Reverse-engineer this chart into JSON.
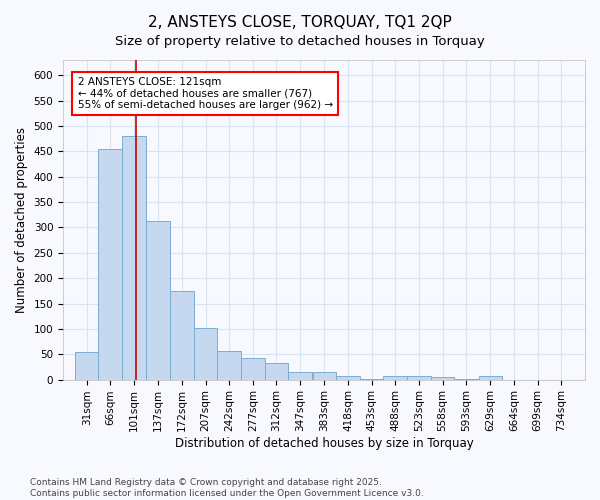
{
  "title": "2, ANSTEYS CLOSE, TORQUAY, TQ1 2QP",
  "subtitle": "Size of property relative to detached houses in Torquay",
  "xlabel": "Distribution of detached houses by size in Torquay",
  "ylabel": "Number of detached properties",
  "bar_color": "#c5d8f0",
  "bar_edge_color": "#7aadd4",
  "background_color": "#f7f9ff",
  "grid_color": "#d8e4f0",
  "vline_color": "#cc0000",
  "annotation_text": "2 ANSTEYS CLOSE: 121sqm\n← 44% of detached houses are smaller (767)\n55% of semi-detached houses are larger (962) →",
  "bins": [
    31,
    66,
    101,
    137,
    172,
    207,
    242,
    277,
    312,
    347,
    383,
    418,
    453,
    488,
    523,
    558,
    593,
    629,
    664,
    699,
    734
  ],
  "bar_heights": [
    55,
    455,
    480,
    312,
    174,
    101,
    57,
    43,
    33,
    15,
    15,
    8,
    2,
    7,
    7,
    5,
    1,
    7,
    0,
    0,
    0
  ],
  "bin_width": 35,
  "vline_x": 121,
  "ylim": [
    0,
    630
  ],
  "yticks": [
    0,
    50,
    100,
    150,
    200,
    250,
    300,
    350,
    400,
    450,
    500,
    550,
    600
  ],
  "footnote": "Contains HM Land Registry data © Crown copyright and database right 2025.\nContains public sector information licensed under the Open Government Licence v3.0.",
  "title_fontsize": 11,
  "subtitle_fontsize": 9.5,
  "label_fontsize": 8.5,
  "tick_fontsize": 7.5,
  "annot_fontsize": 7.5,
  "footnote_fontsize": 6.5
}
